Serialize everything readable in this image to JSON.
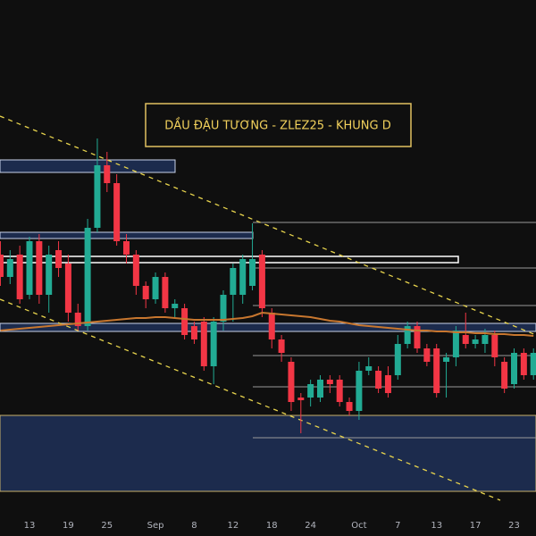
{
  "chart_data": {
    "type": "candlestick",
    "title": "DẦU ĐẬU TƯƠNG - ZLEZ25 - KHUNG D",
    "categories": [
      null,
      null,
      null,
      "13",
      null,
      null,
      null,
      "19",
      null,
      null,
      null,
      "25",
      null,
      null,
      null,
      null,
      "Sep",
      null,
      null,
      null,
      "8",
      null,
      null,
      null,
      "12",
      null,
      null,
      null,
      "18",
      null,
      null,
      null,
      "24",
      null,
      null,
      null,
      null,
      "Oct",
      null,
      null,
      null,
      "7",
      null,
      null,
      null,
      "13",
      null,
      null,
      null,
      "17",
      null,
      null,
      null,
      "23",
      null,
      null
    ],
    "open": [
      31.5,
      29,
      31.5,
      27,
      33,
      27,
      32,
      30.5,
      25,
      23.5,
      34.5,
      41.5,
      39.5,
      33,
      31.5,
      28,
      26.5,
      29,
      25.5,
      25.5,
      23.5,
      24,
      19,
      24,
      27,
      27,
      28,
      31.5,
      25,
      22,
      19.5,
      15.5,
      15.5,
      15.5,
      17.5,
      17.5,
      15,
      14,
      18.5,
      18.5,
      18,
      18,
      21.5,
      23.5,
      21,
      21,
      19.5,
      20,
      22.5,
      21.5,
      21.5,
      22.5,
      19.5,
      17,
      20.5,
      18
    ],
    "high": [
      33,
      32,
      32.5,
      33.5,
      33.8,
      32.5,
      33,
      31.5,
      26,
      35.5,
      44.5,
      43,
      40.5,
      33.8,
      32,
      28.5,
      29.5,
      29.5,
      26.5,
      26,
      24,
      24.5,
      24.5,
      27.5,
      30.5,
      31.5,
      35,
      32,
      25.5,
      22.5,
      20,
      16,
      17.5,
      18,
      18,
      18,
      15.5,
      19.5,
      20,
      19,
      19,
      22.5,
      24,
      24,
      21.5,
      21.5,
      20.5,
      23.5,
      25,
      22.5,
      23.2,
      23,
      20,
      21,
      21,
      21
    ],
    "low": [
      28,
      28.2,
      26,
      26.5,
      26,
      25,
      29,
      24,
      23,
      23,
      34,
      38.5,
      32.5,
      30.5,
      27,
      25.5,
      26,
      25,
      24.5,
      22,
      21.5,
      18.5,
      17,
      23,
      24,
      26,
      27.5,
      24.5,
      21,
      19.5,
      14,
      11.5,
      14.5,
      15,
      16,
      14.5,
      13.5,
      13,
      18,
      16,
      15.5,
      17.5,
      21,
      20.5,
      19,
      15.5,
      15.5,
      19,
      21,
      21,
      20.5,
      19,
      16,
      16.5,
      17.5,
      17.5
    ],
    "close": [
      29,
      31,
      26.5,
      33,
      27,
      31.5,
      30,
      25,
      23.5,
      34.5,
      41.5,
      39.5,
      33,
      31.5,
      28,
      26.5,
      29,
      25.5,
      26,
      22.5,
      22,
      19,
      24,
      27,
      30,
      31,
      31,
      25.5,
      22,
      20.5,
      15,
      15.2,
      17,
      17.5,
      17,
      15,
      14,
      18.5,
      19,
      16.5,
      16,
      21.5,
      23.5,
      21,
      19.5,
      16,
      20,
      23,
      21.5,
      22,
      22.5,
      20,
      16.5,
      20.5,
      18,
      20.5
    ],
    "up_color": "#22ab94",
    "down_color": "#f23645",
    "overlay": {
      "color": "#c8772f",
      "values": [
        23,
        23.1,
        23.2,
        23.3,
        23.4,
        23.5,
        23.6,
        23.7,
        23.8,
        23.9,
        24,
        24.1,
        24.2,
        24.3,
        24.4,
        24.4,
        24.5,
        24.5,
        24.4,
        24.3,
        24.2,
        24.2,
        24.2,
        24.2,
        24.3,
        24.4,
        24.6,
        25,
        24.9,
        24.8,
        24.7,
        24.6,
        24.5,
        24.3,
        24.1,
        24,
        23.8,
        23.6,
        23.5,
        23.4,
        23.3,
        23.2,
        23.1,
        23,
        23,
        22.9,
        22.9,
        22.8,
        22.8,
        22.7,
        22.7,
        22.6,
        22.6,
        22.5,
        22.5,
        22.4
      ]
    },
    "ylim": [
      0,
      60
    ]
  }
}
